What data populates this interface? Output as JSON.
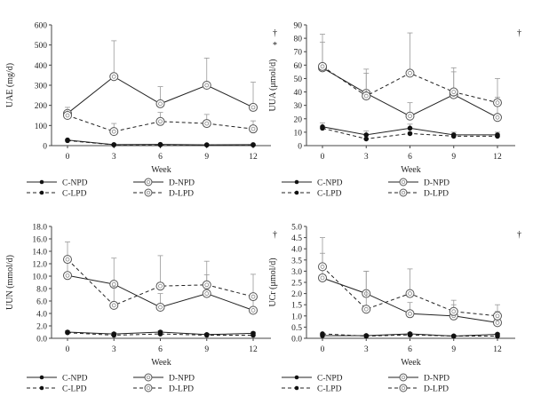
{
  "chart_data": [
    {
      "type": "line",
      "ylabel": "UAE (mg/d)",
      "xlabel": "Week",
      "x": [
        0,
        3,
        6,
        9,
        12
      ],
      "ylim": [
        0,
        600
      ],
      "yticks": [
        "0",
        "100",
        "200",
        "300",
        "400",
        "500",
        "600"
      ],
      "annotations": [
        "†",
        "*"
      ],
      "series": [
        {
          "name": "C-NPD",
          "values": [
            28,
            5,
            6,
            4,
            5
          ],
          "errors": [
            0,
            0,
            0,
            0,
            0
          ]
        },
        {
          "name": "D-NPD",
          "values": [
            160,
            343,
            208,
            300,
            190
          ],
          "errors": [
            0,
            178,
            85,
            135,
            125
          ]
        },
        {
          "name": "C-LPD",
          "values": [
            25,
            4,
            4,
            3,
            3
          ],
          "errors": [
            0,
            0,
            0,
            0,
            0
          ]
        },
        {
          "name": "D-LPD",
          "values": [
            150,
            70,
            120,
            110,
            83
          ],
          "errors": [
            40,
            40,
            45,
            45,
            40
          ]
        }
      ]
    },
    {
      "type": "line",
      "ylabel": "UUA (μmol/d)",
      "xlabel": "Week",
      "x": [
        0,
        3,
        6,
        9,
        12
      ],
      "ylim": [
        0,
        90
      ],
      "yticks": [
        "0",
        "10",
        "20",
        "30",
        "40",
        "50",
        "60",
        "70",
        "80",
        "90"
      ],
      "annotations": [
        "†"
      ],
      "series": [
        {
          "name": "C-NPD",
          "values": [
            14,
            8,
            13,
            8,
            8
          ],
          "errors": [
            3,
            3,
            3,
            2,
            2
          ]
        },
        {
          "name": "D-NPD",
          "values": [
            58,
            39,
            22,
            38,
            21
          ],
          "errors": [
            25,
            15,
            10,
            20,
            15
          ]
        },
        {
          "name": "C-LPD",
          "values": [
            13,
            5,
            9,
            7,
            7
          ],
          "errors": [
            0,
            0,
            0,
            0,
            0
          ]
        },
        {
          "name": "D-LPD",
          "values": [
            59,
            37,
            54,
            40,
            32
          ],
          "errors": [
            18,
            20,
            30,
            15,
            18
          ]
        }
      ]
    },
    {
      "type": "line",
      "ylabel": "UUN (mmol/d)",
      "xlabel": "Week",
      "x": [
        0,
        3,
        6,
        9,
        12
      ],
      "ylim": [
        0,
        18
      ],
      "yticks": [
        "0.0",
        "2.0",
        "4.0",
        "6.0",
        "8.0",
        "10.0",
        "12.0",
        "14.0",
        "16.0",
        "18.0"
      ],
      "annotations": [
        "†"
      ],
      "series": [
        {
          "name": "C-NPD",
          "values": [
            1.0,
            0.7,
            1.0,
            0.6,
            0.8
          ],
          "errors": [
            0.2,
            0.2,
            0.2,
            0.2,
            0.2
          ]
        },
        {
          "name": "D-NPD",
          "values": [
            10.1,
            8.7,
            5.0,
            7.2,
            4.5
          ],
          "errors": [
            3.0,
            4.2,
            2.2,
            3.0,
            2.5
          ]
        },
        {
          "name": "C-LPD",
          "values": [
            0.9,
            0.5,
            0.7,
            0.5,
            0.5
          ],
          "errors": [
            0,
            0,
            0,
            0,
            0
          ]
        },
        {
          "name": "D-LPD",
          "values": [
            12.7,
            5.3,
            8.4,
            8.6,
            6.7
          ],
          "errors": [
            2.8,
            3.0,
            4.9,
            3.8,
            3.6
          ]
        }
      ]
    },
    {
      "type": "line",
      "ylabel": "UCr (μmol/d)",
      "xlabel": "Week",
      "x": [
        0,
        3,
        6,
        9,
        12
      ],
      "ylim": [
        0,
        5
      ],
      "yticks": [
        "0.0",
        "0.5",
        "1.0",
        "1.5",
        "2.0",
        "2.5",
        "3.0",
        "3.5",
        "4.0",
        "4.5",
        "5.0"
      ],
      "annotations": [
        "†"
      ],
      "series": [
        {
          "name": "C-NPD",
          "values": [
            0.12,
            0.12,
            0.2,
            0.1,
            0.18
          ],
          "errors": [
            0.05,
            0.05,
            0.05,
            0.05,
            0.05
          ]
        },
        {
          "name": "D-NPD",
          "values": [
            2.7,
            2.0,
            1.1,
            1.0,
            0.7
          ],
          "errors": [
            1.1,
            1.0,
            0.5,
            0.5,
            0.5
          ]
        },
        {
          "name": "C-LPD",
          "values": [
            0.2,
            0.1,
            0.15,
            0.1,
            0.1
          ],
          "errors": [
            0,
            0,
            0,
            0,
            0
          ]
        },
        {
          "name": "D-LPD",
          "values": [
            3.2,
            1.3,
            2.0,
            1.2,
            1.0
          ],
          "errors": [
            1.3,
            1.7,
            1.1,
            0.5,
            0.5
          ]
        }
      ]
    }
  ],
  "legend": [
    {
      "name": "C-NPD",
      "dashed": false,
      "marker": "filled"
    },
    {
      "name": "D-NPD",
      "dashed": false,
      "marker": "open"
    },
    {
      "name": "C-LPD",
      "dashed": true,
      "marker": "filled"
    },
    {
      "name": "D-LPD",
      "dashed": true,
      "marker": "open"
    }
  ]
}
